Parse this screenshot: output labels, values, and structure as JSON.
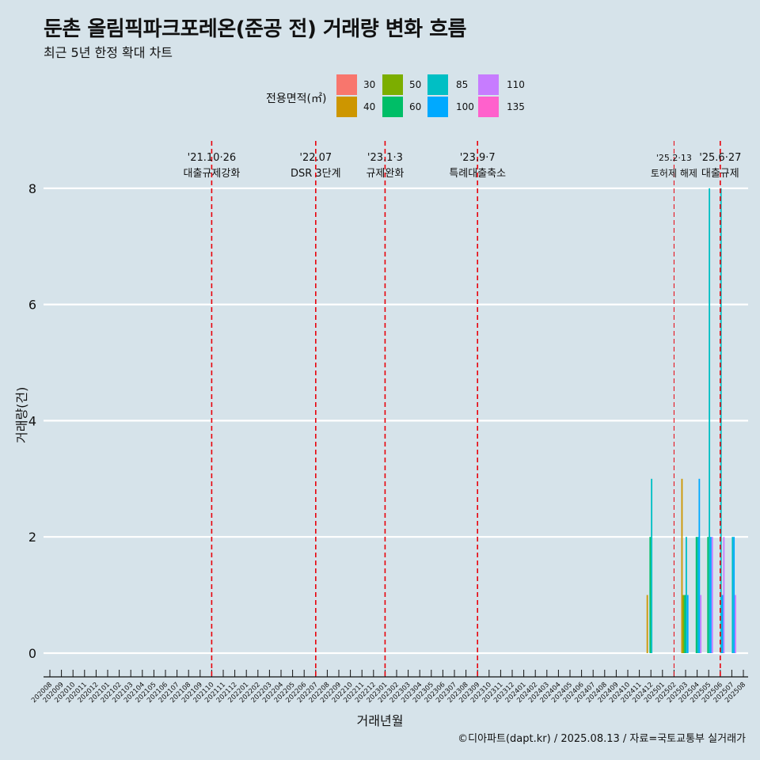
{
  "title": "둔촌 올림픽파크포레온(준공 전) 거래량 변화 흐름",
  "subtitle": "최근 5년 한정 확대 차트",
  "caption": "©디아파트(dapt.kr) / 2025.08.13 / 자료=국토교통부 실거래가",
  "legend": {
    "title": "전용면적(㎡)",
    "items": [
      {
        "label": "30",
        "color": "#F8766D"
      },
      {
        "label": "40",
        "color": "#CD9600"
      },
      {
        "label": "50",
        "color": "#7CAE00"
      },
      {
        "label": "60",
        "color": "#00BE67"
      },
      {
        "label": "85",
        "color": "#00BFC4"
      },
      {
        "label": "100",
        "color": "#00A9FF"
      },
      {
        "label": "110",
        "color": "#C77CFF"
      },
      {
        "label": "135",
        "color": "#FF61CC"
      }
    ]
  },
  "chart_data": {
    "type": "bar",
    "title": "둔촌 올림픽파크포레온(준공 전) 거래량 변화 흐름",
    "subtitle": "최근 5년 한정 확대 차트",
    "xlabel": "거래년월",
    "ylabel": "거래량(건)",
    "ylim": [
      0,
      8
    ],
    "yticks": [
      0,
      2,
      4,
      6,
      8
    ],
    "grid": "horizontal",
    "legend_position": "top",
    "categories": [
      "202008",
      "202009",
      "202010",
      "202011",
      "202012",
      "202101",
      "202102",
      "202103",
      "202104",
      "202105",
      "202106",
      "202107",
      "202108",
      "202109",
      "202110",
      "202111",
      "202112",
      "202201",
      "202202",
      "202203",
      "202204",
      "202205",
      "202206",
      "202207",
      "202208",
      "202209",
      "202210",
      "202211",
      "202212",
      "202301",
      "202302",
      "202303",
      "202304",
      "202305",
      "202306",
      "202307",
      "202308",
      "202309",
      "202310",
      "202311",
      "202312",
      "202401",
      "202402",
      "202403",
      "202404",
      "202405",
      "202406",
      "202407",
      "202408",
      "202409",
      "202410",
      "202411",
      "202412",
      "202501",
      "202502",
      "202503",
      "202504",
      "202505",
      "202506",
      "202507",
      "202508"
    ],
    "series_order": [
      "30",
      "40",
      "50",
      "60",
      "85",
      "100",
      "110",
      "135"
    ],
    "bars": [
      {
        "month": "202412",
        "series": "40",
        "value": 1
      },
      {
        "month": "202412",
        "series": "60",
        "value": 2
      },
      {
        "month": "202412",
        "series": "85",
        "value": 3
      },
      {
        "month": "202503",
        "series": "40",
        "value": 3
      },
      {
        "month": "202503",
        "series": "50",
        "value": 1
      },
      {
        "month": "202503",
        "series": "60",
        "value": 1
      },
      {
        "month": "202503",
        "series": "85",
        "value": 2
      },
      {
        "month": "202503",
        "series": "100",
        "value": 1
      },
      {
        "month": "202504",
        "series": "60",
        "value": 2
      },
      {
        "month": "202504",
        "series": "85",
        "value": 2
      },
      {
        "month": "202504",
        "series": "100",
        "value": 3
      },
      {
        "month": "202504",
        "series": "110",
        "value": 1
      },
      {
        "month": "202505",
        "series": "60",
        "value": 2
      },
      {
        "month": "202505",
        "series": "85",
        "value": 8
      },
      {
        "month": "202505",
        "series": "100",
        "value": 2
      },
      {
        "month": "202505",
        "series": "110",
        "value": 2
      },
      {
        "month": "202506",
        "series": "85",
        "value": 8
      },
      {
        "month": "202506",
        "series": "100",
        "value": 1
      },
      {
        "month": "202506",
        "series": "110",
        "value": 2
      },
      {
        "month": "202507",
        "series": "85",
        "value": 2
      },
      {
        "month": "202507",
        "series": "100",
        "value": 2
      },
      {
        "month": "202507",
        "series": "110",
        "value": 1
      }
    ],
    "events": [
      {
        "month": "202110",
        "date": "'21.10·26",
        "label": "대출규제강화",
        "thick": true
      },
      {
        "month": "202207",
        "date": "'22.07",
        "label": "DSR 3단계",
        "thick": true
      },
      {
        "month": "202301",
        "date": "'23.1·3",
        "label": "규제완화",
        "thick": true
      },
      {
        "month": "202309",
        "date": "'23.9·7",
        "label": "특례대출축소",
        "thick": true
      },
      {
        "month": "202502",
        "date": "'25.2·13",
        "label": "토허제 해제",
        "thick": false
      },
      {
        "month": "202506",
        "date": "'25.6·27",
        "label": "대출규제",
        "thick": true
      }
    ]
  }
}
